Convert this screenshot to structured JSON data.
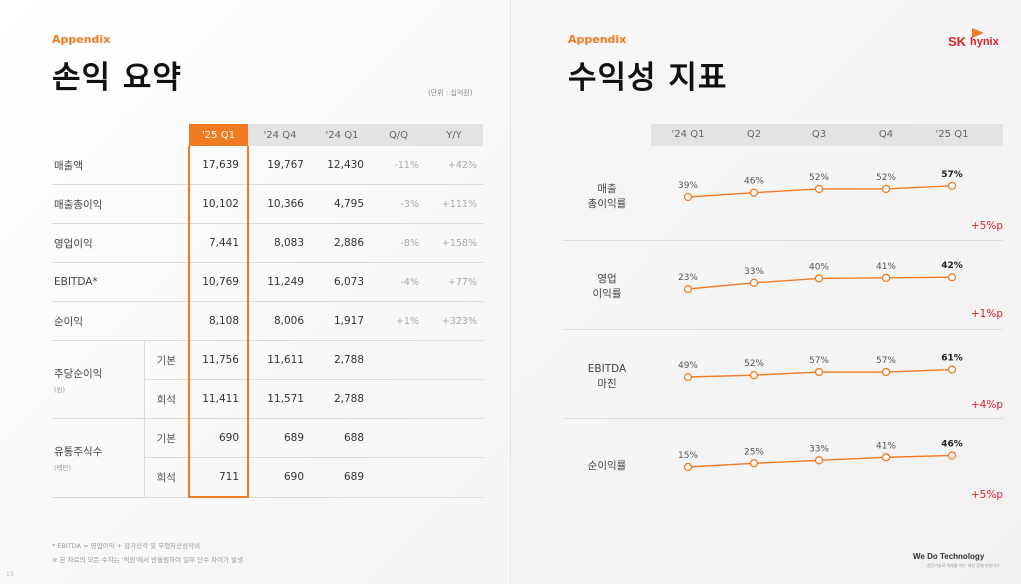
{
  "left": {
    "appendix": "Appendix",
    "title": "손익 요약",
    "unit": "(단위 : 십억원)",
    "columns": [
      "'25 Q1",
      "'24 Q4",
      "'24 Q1",
      "Q/Q",
      "Y/Y"
    ],
    "rows": [
      {
        "label": "매출액",
        "v1": "17,639",
        "v2": "19,767",
        "v3": "12,430",
        "qq": "-11%",
        "yy": "+42%"
      },
      {
        "label": "매출총이익",
        "v1": "10,102",
        "v2": "10,366",
        "v3": "4,795",
        "qq": "-3%",
        "yy": "+111%"
      },
      {
        "label": "영업이익",
        "v1": "7,441",
        "v2": "8,083",
        "v3": "2,886",
        "qq": "-8%",
        "yy": "+158%"
      },
      {
        "label": "EBITDA*",
        "v1": "10,769",
        "v2": "11,249",
        "v3": "6,073",
        "qq": "-4%",
        "yy": "+77%"
      },
      {
        "label": "순이익",
        "v1": "8,108",
        "v2": "8,006",
        "v3": "1,917",
        "qq": "+1%",
        "yy": "+323%"
      }
    ],
    "eps": {
      "label": "주당순이익",
      "unit": "(원)",
      "basic": {
        "sub": "기본",
        "v1": "11,756",
        "v2": "11,611",
        "v3": "2,788"
      },
      "diluted": {
        "sub": "희석",
        "v1": "11,411",
        "v2": "11,571",
        "v3": "2,788"
      }
    },
    "shares": {
      "label": "유통주식수",
      "unit": "(백만)",
      "basic": {
        "sub": "기본",
        "v1": "690",
        "v2": "689",
        "v3": "688"
      },
      "diluted": {
        "sub": "희석",
        "v1": "711",
        "v2": "690",
        "v3": "689"
      }
    },
    "footnote1": "* EBITDA = 영업이익 + 감가상각 및 무형자산상각비",
    "footnote2": "※ 본 자료의 모든 수치는 '억원'에서 반올림하여 일부 단수 차이가 발생",
    "page_number": "13"
  },
  "right": {
    "appendix": "Appendix",
    "title": "수익성 지표",
    "logo_sk": "SK",
    "logo_hynix": "hynix",
    "slogan": "We Do Technology",
    "slogan_sub": "첨단기술로 미래를 여는 세상 함께 만들어가",
    "colors": {
      "accent": "#f07b23",
      "delta": "#e0202a"
    }
  },
  "chart_data": {
    "type": "line",
    "categories": [
      "'24 Q1",
      "Q2",
      "Q3",
      "Q4",
      "'25 Q1"
    ],
    "series": [
      {
        "name": "매출\n총이익률",
        "values": [
          39,
          46,
          52,
          52,
          57
        ],
        "labels": [
          "39%",
          "46%",
          "52%",
          "52%",
          "57%"
        ],
        "delta": "+5%p"
      },
      {
        "name": "영업\n이익률",
        "values": [
          23,
          33,
          40,
          41,
          42
        ],
        "labels": [
          "23%",
          "33%",
          "40%",
          "41%",
          "42%"
        ],
        "delta": "+1%p"
      },
      {
        "name": "EBITDA\n마진",
        "values": [
          49,
          52,
          57,
          57,
          61
        ],
        "labels": [
          "49%",
          "52%",
          "57%",
          "57%",
          "61%"
        ],
        "delta": "+4%p"
      },
      {
        "name": "순이익률",
        "values": [
          15,
          25,
          33,
          41,
          46
        ],
        "labels": [
          "15%",
          "25%",
          "33%",
          "41%",
          "46%"
        ],
        "delta": "+5%p"
      }
    ]
  }
}
